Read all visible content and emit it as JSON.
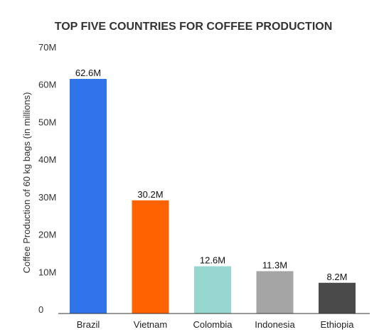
{
  "chart_data": {
    "type": "bar",
    "title": "TOP FIVE COUNTRIES FOR COFFEE PRODUCTION",
    "xlabel": "",
    "ylabel": "Coffee Production of 60 kg bags (in millions)",
    "categories": [
      "Brazil",
      "Vietnam",
      "Colombia",
      "Indonesia",
      "Ethiopia"
    ],
    "values": [
      62.6,
      30.2,
      12.6,
      11.3,
      8.2
    ],
    "data_labels": [
      "62.6M",
      "30.2M",
      "12.6M",
      "11.3M",
      "8.2M"
    ],
    "colors": [
      "#2f74ea",
      "#ff6200",
      "#96d8cf",
      "#a5a5a5",
      "#4a4a4a"
    ],
    "ylim": [
      0,
      70
    ],
    "yticks": [
      0,
      10,
      20,
      30,
      40,
      50,
      60,
      70
    ],
    "ytick_labels": [
      "0",
      "10M",
      "20M",
      "30M",
      "40M",
      "50M",
      "60M",
      "70M"
    ],
    "grid": false,
    "legend": "none"
  }
}
